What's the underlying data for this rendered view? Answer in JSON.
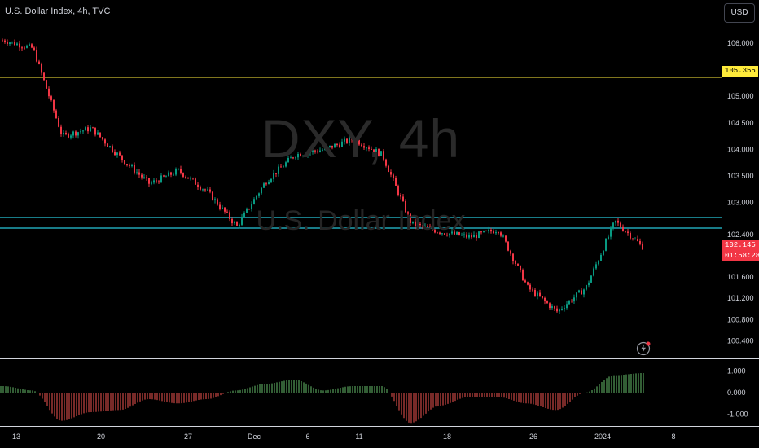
{
  "header": {
    "title": "U.S. Dollar Index, 4h, TVC",
    "currency": "USD"
  },
  "watermark": {
    "symbol": "DXY, 4h",
    "name": "U.S. Dollar Index"
  },
  "price_tags": {
    "horizontal_line": "105.355",
    "last_price": "102.145",
    "countdown": "01:58:28"
  },
  "icons": {
    "alert": "lightning-alert-icon"
  },
  "colors": {
    "up": "#089981",
    "down": "#f23645",
    "hline": "#ffeb3b",
    "zone": "#26c6da",
    "osc_up": "#66bb6a",
    "osc_down": "#ef5350"
  },
  "chart_data": [
    {
      "type": "line",
      "title": "U.S. Dollar Index, 4h, TVC",
      "x_tick_labels": [
        "13",
        "20",
        "27",
        "Dec",
        "6",
        "11",
        "18",
        "26",
        "2024",
        "8"
      ],
      "y_tick_labels": [
        "106.000",
        "105.500",
        "105.000",
        "104.500",
        "104.000",
        "103.500",
        "103.000",
        "102.400",
        "101.600",
        "101.200",
        "100.800",
        "100.400"
      ],
      "ylim": [
        100.1,
        106.35
      ],
      "horizontal_lines": [
        105.355,
        102.72,
        102.52
      ],
      "last_price": 102.145,
      "x": [
        "13",
        "15",
        "17",
        "20",
        "22",
        "24",
        "27",
        "29",
        "Dec",
        "4",
        "6",
        "8",
        "11",
        "13",
        "15",
        "18",
        "20",
        "22",
        "26",
        "28",
        "2024",
        "3",
        "5"
      ],
      "values": [
        106.05,
        105.9,
        104.25,
        104.4,
        103.85,
        103.35,
        103.6,
        103.2,
        102.55,
        103.4,
        103.9,
        104.0,
        104.2,
        103.9,
        102.6,
        102.45,
        102.35,
        102.5,
        101.4,
        100.95,
        101.4,
        102.65,
        102.145
      ]
    },
    {
      "type": "bar",
      "ylim": [
        -1.5,
        1.5
      ],
      "y_tick_labels": [
        "1.000",
        "0.000",
        "-1.000"
      ],
      "x": [
        "13",
        "15",
        "17",
        "20",
        "22",
        "24",
        "27",
        "29",
        "Dec",
        "4",
        "6",
        "8",
        "11",
        "13",
        "15",
        "18",
        "20",
        "22",
        "26",
        "28",
        "2024",
        "3",
        "5"
      ],
      "values": [
        0.3,
        0.1,
        -1.3,
        -0.9,
        -0.8,
        -0.3,
        -0.5,
        -0.3,
        0.1,
        0.4,
        0.6,
        0.1,
        0.3,
        0.3,
        -1.4,
        -0.6,
        -0.2,
        -0.2,
        -0.5,
        -0.8,
        0.0,
        0.8,
        0.9
      ]
    }
  ]
}
